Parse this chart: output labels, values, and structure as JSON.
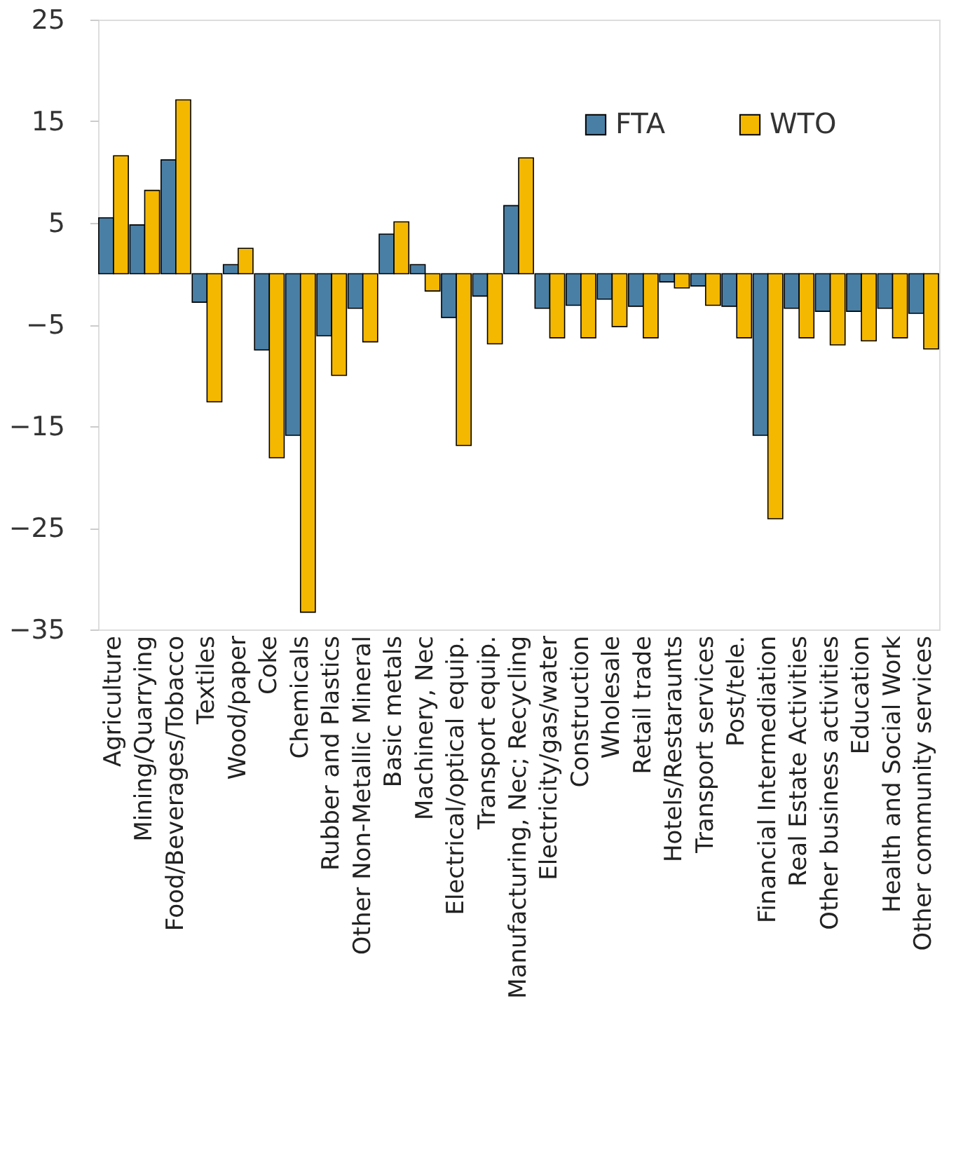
{
  "chart_data": {
    "type": "bar",
    "categories": [
      "Agriculture",
      "Mining/Quarrying",
      "Food/Beverages/Tobacco",
      "Textiles",
      "Wood/paper",
      "Coke",
      "Chemicals",
      "Rubber and Plastics",
      "Other Non-Metallic Mineral",
      "Basic metals",
      "Machinery, Nec",
      "Electrical/optical equip.",
      "Transport equip.",
      "Manufacturing, Nec; Recycling",
      "Electricity/gas/water",
      "Construction",
      "Wholesale",
      "Retail trade",
      "Hotels/Restaraunts",
      "Transport services",
      "Post/tele.",
      "Financial Intermediation",
      "Real Estate Activities",
      "Other business activities",
      "Education",
      "Health and Social Work",
      "Other community services"
    ],
    "series": [
      {
        "name": "FTA",
        "color": "#4a7fa5",
        "values": [
          5.5,
          4.8,
          11.2,
          -2.8,
          0.9,
          -7.5,
          -15.9,
          -6.1,
          -3.4,
          3.9,
          0.9,
          -4.3,
          -2.2,
          6.7,
          -3.4,
          -3.1,
          -2.5,
          -3.2,
          -0.8,
          -1.2,
          -3.2,
          -15.9,
          -3.4,
          -3.7,
          -3.7,
          -3.4,
          -3.9
        ]
      },
      {
        "name": "WTO",
        "color": "#f5b800",
        "values": [
          11.6,
          8.2,
          17.1,
          -12.6,
          2.5,
          -18.1,
          -33.3,
          -10.0,
          -6.7,
          5.1,
          -1.7,
          -16.9,
          -6.9,
          11.4,
          -6.3,
          -6.3,
          -5.2,
          -6.3,
          -1.4,
          -3.1,
          -6.3,
          -24.1,
          -6.3,
          -7.0,
          -6.6,
          -6.3,
          -7.4
        ]
      }
    ],
    "ylim": [
      -35,
      25
    ],
    "yticks": [
      -35,
      -25,
      -15,
      -5,
      5,
      15,
      25
    ],
    "grid": false,
    "legend": "top right"
  }
}
